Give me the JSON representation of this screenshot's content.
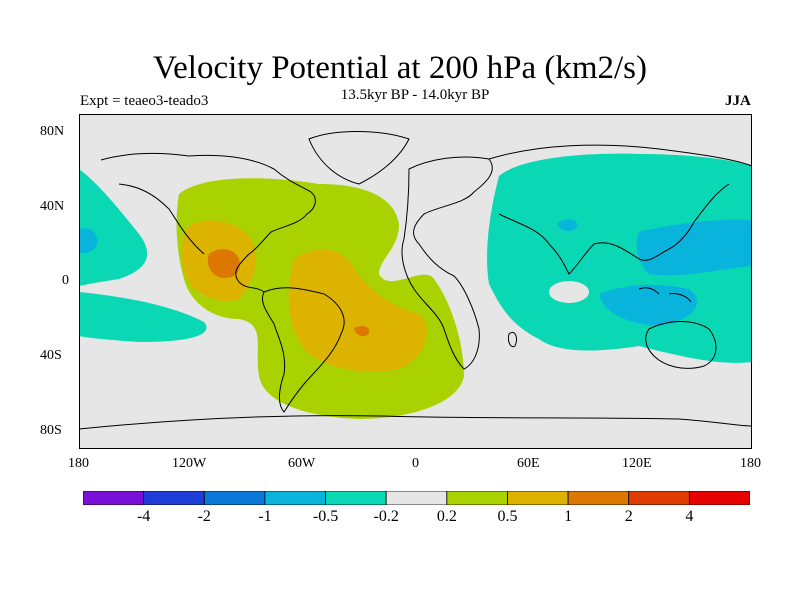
{
  "title": "Velocity Potential at 200 hPa (km2/s)",
  "subtitle": "13.5kyr BP - 14.0kyr BP",
  "experiment_label": "Expt = teaeo3-teado3",
  "season": "JJA",
  "lat_ticks": [
    "80N",
    "40N",
    "0",
    "40S",
    "80S"
  ],
  "lon_ticks": [
    "180",
    "120W",
    "60W",
    "0",
    "60E",
    "120E",
    "180"
  ],
  "colorbar": {
    "colors": [
      "#7a10d8",
      "#1e3cd8",
      "#0a78d8",
      "#08b4dc",
      "#0ad8b4",
      "#e6e6e6",
      "#aad200",
      "#dcb400",
      "#dc7800",
      "#e03c00",
      "#e60000"
    ],
    "labels": [
      "-4",
      "-2",
      "-1",
      "-0.5",
      "-0.2",
      "0.2",
      "0.5",
      "1",
      "2",
      "4"
    ]
  },
  "colors": {
    "background": "#e6e6e6",
    "neg_weak": "#0ad8b4",
    "neg_mid": "#08b4dc",
    "pos_weak": "#aad200",
    "pos_mid": "#dcb400",
    "pos_strong": "#dc7800"
  }
}
